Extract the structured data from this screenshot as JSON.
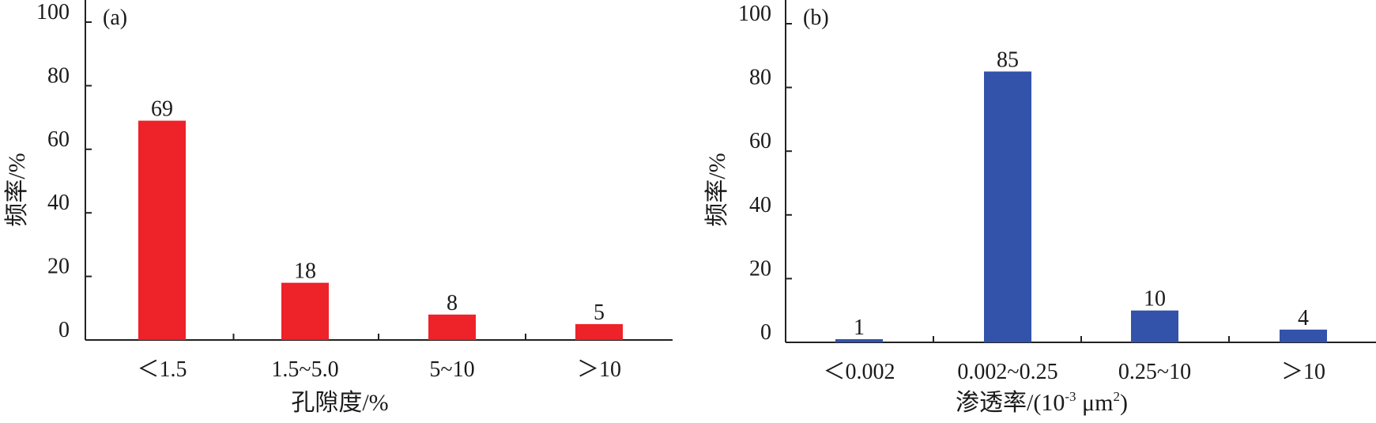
{
  "chart_data": [
    {
      "type": "bar",
      "panel_label": "(a)",
      "categories": [
        "<1.5",
        "1.5~5.0",
        "5~10",
        ">10"
      ],
      "category_display": [
        "＜1.5",
        "1.5~5.0",
        "5~10",
        "＞10"
      ],
      "values": [
        69,
        18,
        8,
        5
      ],
      "xlabel": "孔隙度/%",
      "ylabel": "频率/%",
      "ylim": [
        0,
        100
      ],
      "yticks": [
        0,
        20,
        40,
        60,
        80,
        100
      ],
      "bar_color": "#ee2229",
      "grid": false
    },
    {
      "type": "bar",
      "panel_label": "(b)",
      "categories": [
        "<0.002",
        "0.002~0.25",
        "0.25~10",
        ">10"
      ],
      "category_display": [
        "＜0.002",
        "0.002~0.25",
        "0.25~10",
        "＞10"
      ],
      "values": [
        1,
        85,
        10,
        4
      ],
      "xlabel": "渗透率/(10",
      "xlabel_sup1": "-3",
      "xlabel_mid": " μm",
      "xlabel_sup2": "2",
      "xlabel_end": ")",
      "ylabel": "频率/%",
      "ylim": [
        0,
        100
      ],
      "yticks": [
        0,
        20,
        40,
        60,
        80,
        100
      ],
      "bar_color": "#3352aa",
      "grid": false
    }
  ]
}
